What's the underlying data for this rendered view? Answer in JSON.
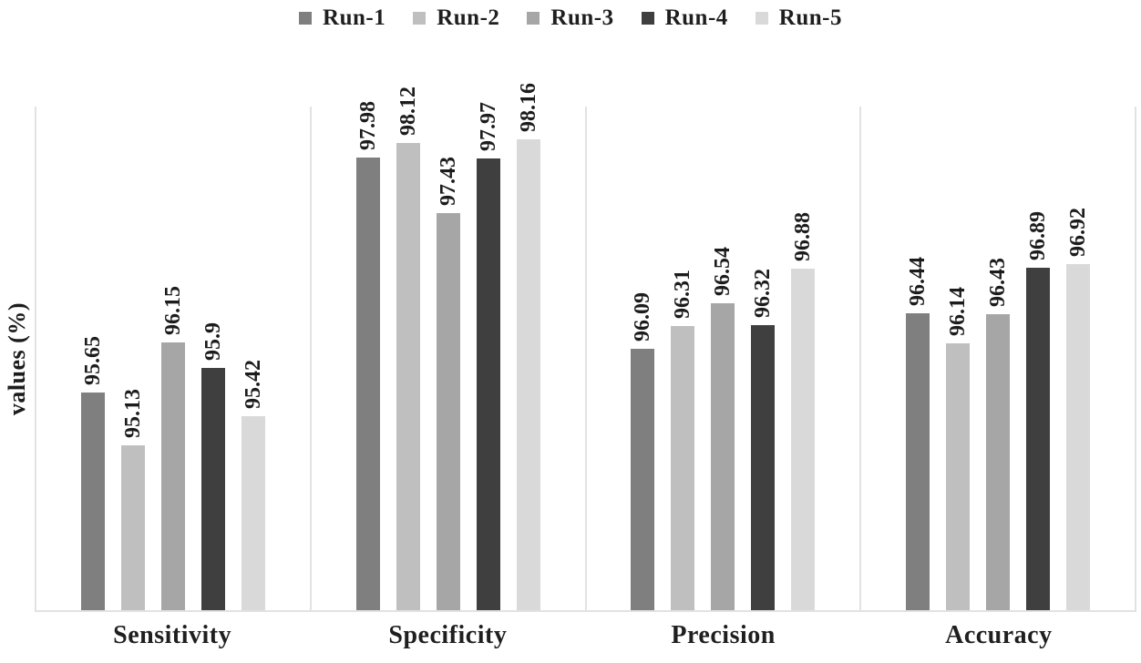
{
  "chart_data": {
    "type": "bar",
    "title": "",
    "categories": [
      "Sensitivity",
      "Specificity",
      "Precision",
      "Accuracy"
    ],
    "series": [
      {
        "name": "Run-1",
        "color": "#7f7f7f",
        "values": [
          95.65,
          97.98,
          96.09,
          96.44
        ]
      },
      {
        "name": "Run-2",
        "color": "#bfbfbf",
        "values": [
          95.13,
          98.12,
          96.31,
          96.14
        ]
      },
      {
        "name": "Run-3",
        "color": "#a6a6a6",
        "values": [
          96.15,
          97.43,
          96.54,
          96.43
        ]
      },
      {
        "name": "Run-4",
        "color": "#3f3f3f",
        "values": [
          95.9,
          97.97,
          96.32,
          96.89
        ]
      },
      {
        "name": "Run-5",
        "color": "#d9d9d9",
        "values": [
          95.42,
          98.16,
          96.88,
          96.92
        ]
      }
    ],
    "xlabel": "",
    "ylabel": "values (%)",
    "ylim": [
      93.5,
      98.5
    ],
    "grid": false,
    "legend_position": "top",
    "value_labels": "rotated-90-above-bars"
  },
  "colors": {
    "axis_line": "#e2e2e2",
    "text": "#1f1f1f",
    "background": "#ffffff"
  }
}
